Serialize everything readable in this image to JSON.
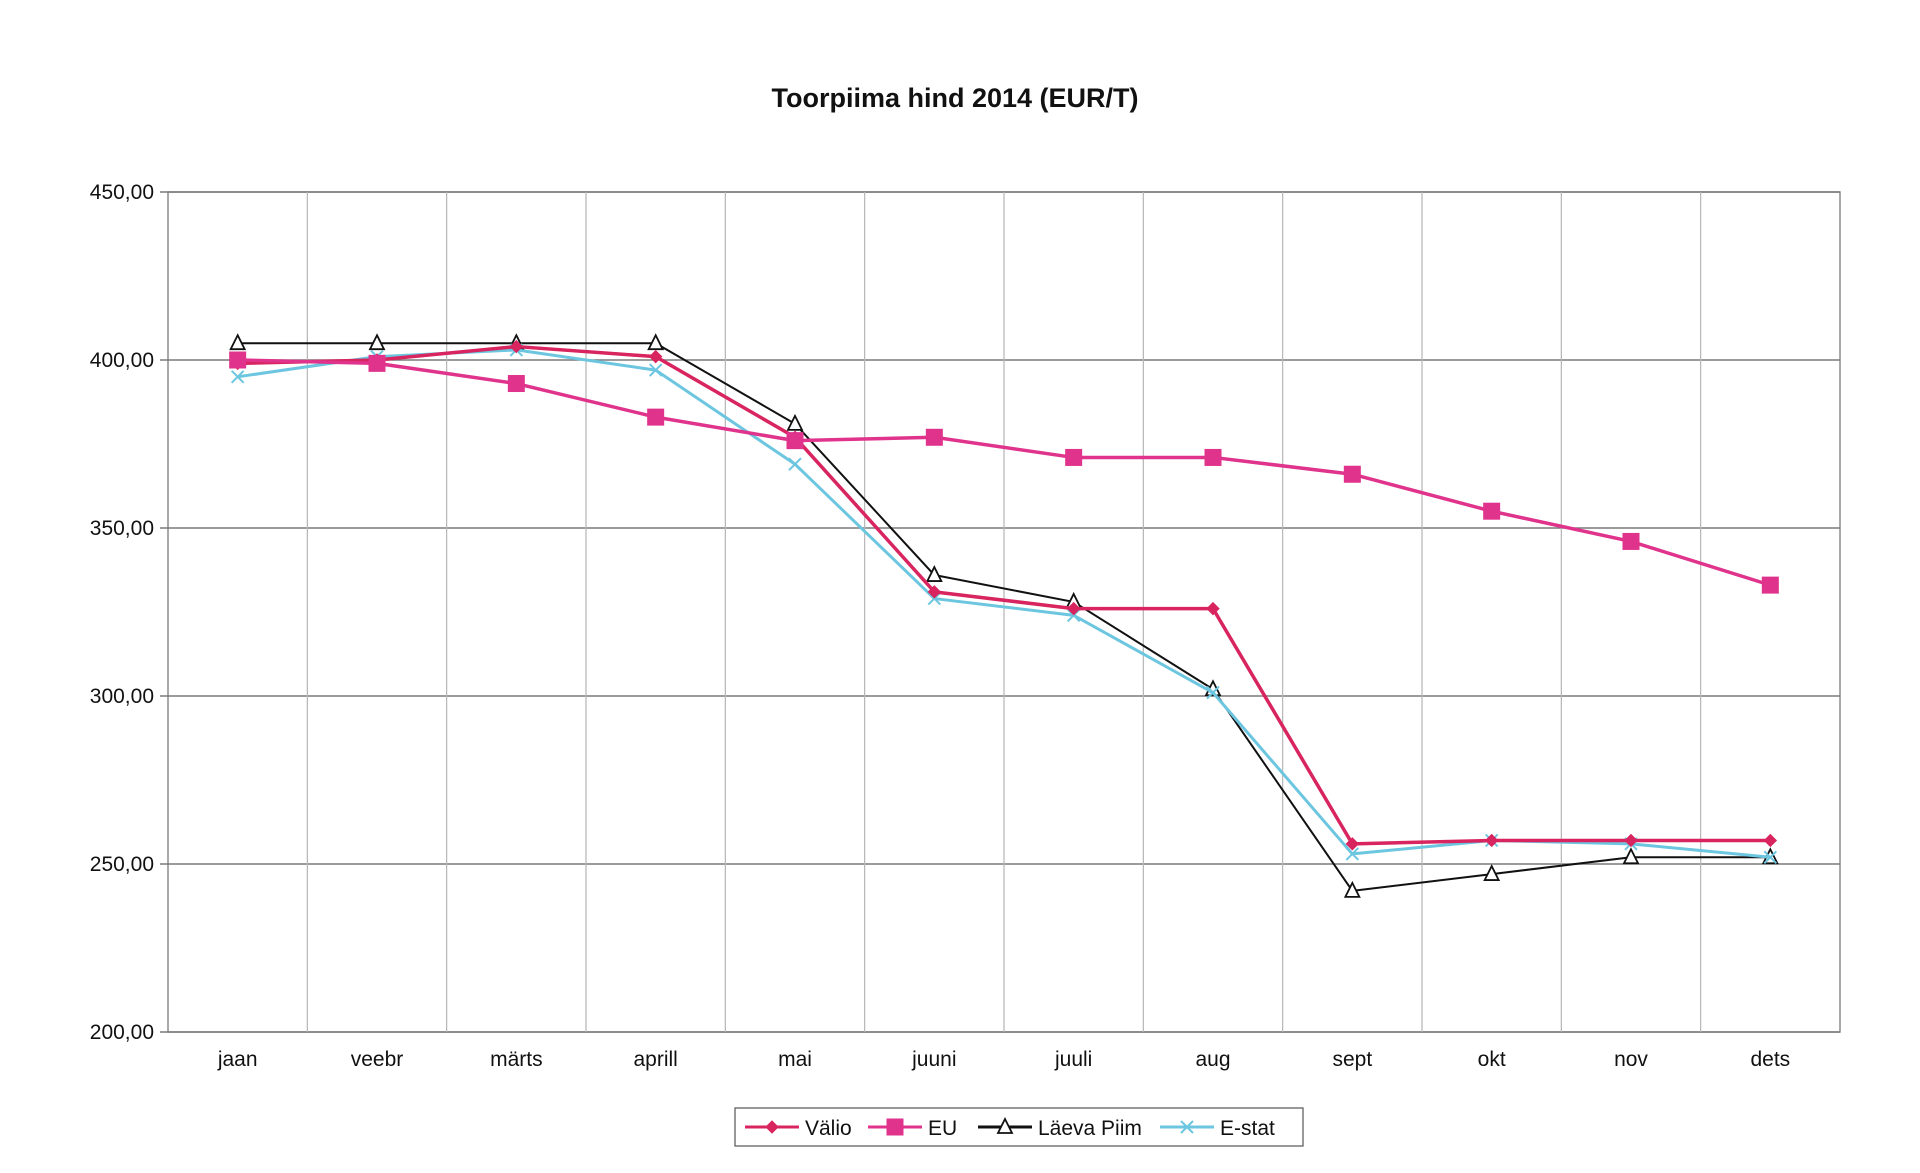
{
  "chart_data": {
    "type": "line",
    "title": "Toorpiima hind 2014 (EUR/T)",
    "xlabel": "",
    "ylabel": "",
    "ylim": [
      200,
      450
    ],
    "yticks": [
      "450,00",
      "400,00",
      "350,00",
      "300,00",
      "250,00",
      "200,00"
    ],
    "ytick_values": [
      450,
      400,
      350,
      300,
      250,
      200
    ],
    "grid": true,
    "legend_position": "bottom",
    "categories": [
      "jaan",
      "veebr",
      "märts",
      "aprill",
      "mai",
      "juuni",
      "juuli",
      "aug",
      "sept",
      "okt",
      "nov",
      "dets"
    ],
    "series": [
      {
        "name": "Välio",
        "color": "#d8245f",
        "marker": "diamond",
        "values": [
          399,
          400,
          404,
          401,
          377,
          331,
          326,
          326,
          256,
          257,
          257,
          257
        ]
      },
      {
        "name": "EU",
        "color": "#e0338c",
        "marker": "square",
        "values": [
          400,
          399,
          393,
          383,
          376,
          377,
          371,
          371,
          366,
          355,
          346,
          333
        ]
      },
      {
        "name": "Läeva Piim",
        "color": "#111111",
        "marker": "triangle",
        "values": [
          405,
          405,
          405,
          405,
          381,
          336,
          328,
          302,
          242,
          247,
          252,
          252
        ]
      },
      {
        "name": "E-stat",
        "color": "#6cc6e0",
        "marker": "x",
        "values": [
          395,
          401,
          403,
          397,
          369,
          329,
          324,
          301,
          253,
          257,
          256,
          252
        ]
      }
    ]
  }
}
